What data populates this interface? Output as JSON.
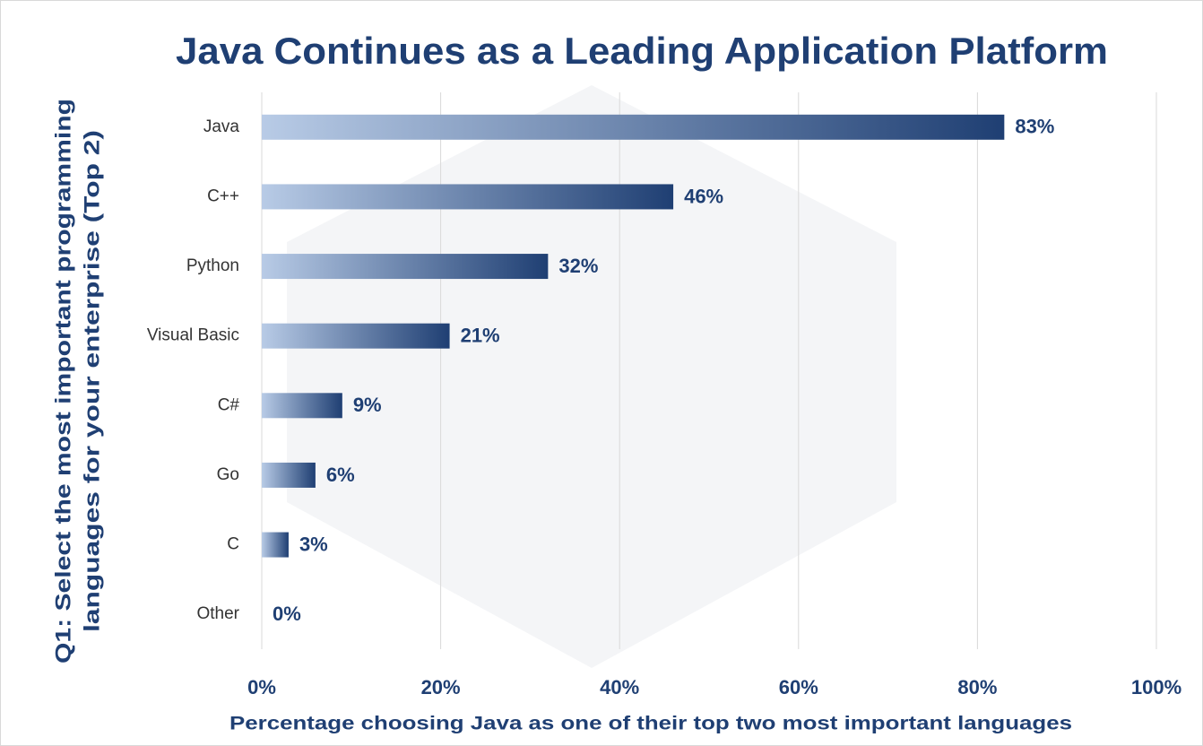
{
  "chart_data": {
    "type": "barh",
    "title": "Java Continues as a Leading Application Platform",
    "xlabel": "Percentage choosing Java as one of their top two most important languages",
    "ylabel": [
      "Q1: Select the most important programming",
      "languages for your enterprise (Top 2)"
    ],
    "categories": [
      "Java",
      "C++",
      "Python",
      "Visual Basic",
      "C#",
      "Go",
      "C",
      "Other"
    ],
    "values": [
      83,
      46,
      32,
      21,
      9,
      6,
      3,
      0
    ],
    "value_labels": [
      "83%",
      "46%",
      "32%",
      "21%",
      "9%",
      "6%",
      "3%",
      "0%"
    ],
    "color": [
      "#b8cbe6",
      "#1f3f73"
    ],
    "xlim": [
      0,
      100
    ],
    "xticks": [
      {
        "value": 0,
        "label": "0%"
      },
      {
        "value": 20,
        "label": "20%"
      },
      {
        "value": 40,
        "label": "40%"
      },
      {
        "value": 60,
        "label": "60%"
      },
      {
        "value": 80,
        "label": "80%"
      },
      {
        "value": 100,
        "label": "100%"
      }
    ],
    "grid": true
  }
}
